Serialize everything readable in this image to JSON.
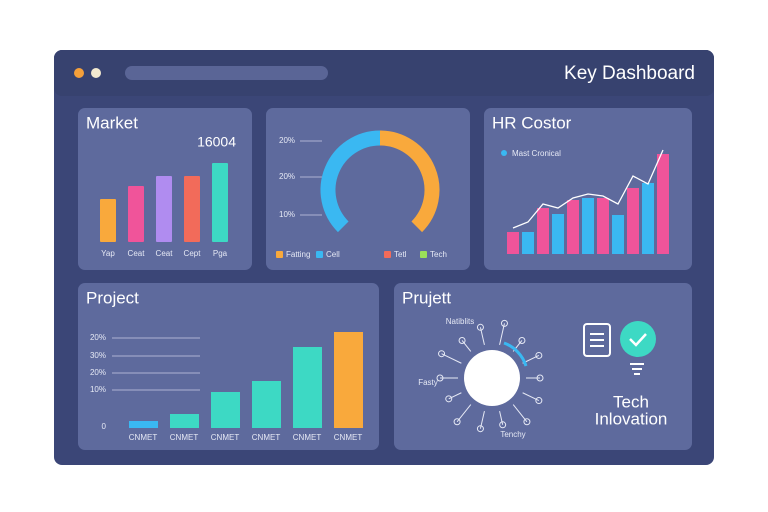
{
  "window": {
    "title": "Key Dashboard"
  },
  "panels": {
    "market": {
      "title": "Market",
      "value": 16004,
      "type": "bar",
      "categories": [
        "Yap",
        "Ceat",
        "Ceat",
        "Cept",
        "Pga"
      ],
      "values": [
        43,
        56,
        66,
        66,
        79
      ],
      "colors": [
        "#f9a93c",
        "#f0549a",
        "#b08cf0",
        "#f26b5a",
        "#3dd9c4"
      ],
      "ylim": [
        0,
        100
      ]
    },
    "gauge": {
      "type": "gauge",
      "axis_labels": [
        "20%",
        "20%",
        "10%"
      ],
      "values": [
        50,
        50
      ],
      "colors": [
        "#3ab8f2",
        "#f9a93c"
      ],
      "legend": [
        {
          "name": "Fatting",
          "color": "#f9a93c"
        },
        {
          "name": "Cell",
          "color": "#3ab8f2"
        },
        {
          "name": "Tetl",
          "color": "#f26b5a"
        },
        {
          "name": "Tech",
          "color": "#9be05a"
        }
      ]
    },
    "hr": {
      "title": "HR Costor",
      "type": "bar-line",
      "legend": "Mast Cronical",
      "legend_color": "#3ab8f2",
      "values": [
        22,
        22,
        46,
        40,
        54,
        56,
        56,
        39,
        66,
        71,
        100
      ],
      "line": [
        26,
        32,
        50,
        46,
        56,
        60,
        58,
        50,
        78,
        70,
        104
      ],
      "colors": [
        "#f0549a",
        "#3ab8f2"
      ],
      "ylim": [
        0,
        110
      ]
    },
    "project": {
      "title": "Project",
      "type": "bar",
      "axis_labels": [
        "20%",
        "30%",
        "20%",
        "10%",
        "0"
      ],
      "categories": [
        "CNMET",
        "CNMET",
        "CNMET",
        "CNMET",
        "CNMET",
        "CNMET"
      ],
      "values": [
        7,
        14,
        36,
        47,
        81,
        96
      ],
      "colors": [
        "#3ab8f2",
        "#3dd9c4",
        "#3dd9c4",
        "#3dd9c4",
        "#3dd9c4",
        "#f9a93c"
      ],
      "ylim": [
        0,
        100
      ]
    },
    "network": {
      "title": "Prujett",
      "labels": [
        "Natiblits",
        "Fasty",
        "Tenchy"
      ]
    },
    "tech": {
      "lines": [
        "Tech",
        "Inlovation"
      ]
    }
  }
}
